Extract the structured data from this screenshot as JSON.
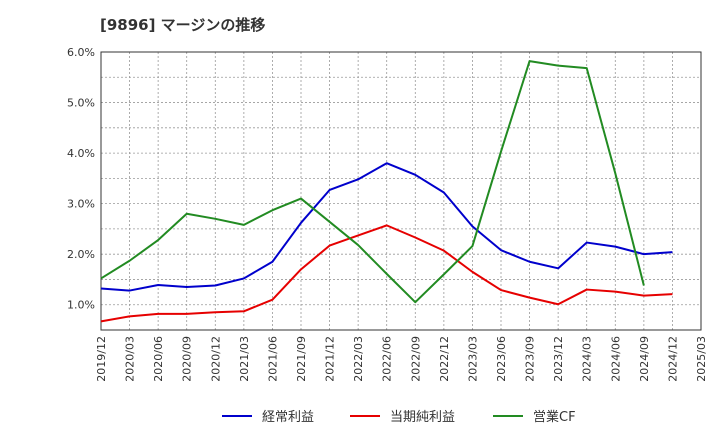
{
  "chart_data": {
    "type": "line",
    "title": "[9896]  マージンの推移",
    "xlabel": "",
    "ylabel": "",
    "ylim": [
      0.5,
      6.0
    ],
    "y_ticks": [
      "1.0%",
      "2.0%",
      "3.0%",
      "4.0%",
      "5.0%",
      "6.0%"
    ],
    "y_tick_values": [
      1.0,
      2.0,
      3.0,
      4.0,
      5.0,
      6.0
    ],
    "categories": [
      "2019/12",
      "2020/03",
      "2020/06",
      "2020/09",
      "2020/12",
      "2021/03",
      "2021/06",
      "2021/09",
      "2021/12",
      "2022/03",
      "2022/06",
      "2022/09",
      "2022/12",
      "2023/03",
      "2023/06",
      "2023/09",
      "2023/12",
      "2024/03",
      "2024/06",
      "2024/09",
      "2024/12",
      "2025/03"
    ],
    "grid": true,
    "legend_position": "bottom",
    "series": [
      {
        "name": "経常利益",
        "color": "#0000cc",
        "values": [
          1.32,
          1.28,
          1.39,
          1.35,
          1.38,
          1.52,
          1.85,
          2.62,
          3.27,
          3.48,
          3.8,
          3.57,
          3.22,
          2.55,
          2.08,
          1.85,
          1.72,
          2.23,
          2.15,
          2.0,
          2.04,
          null
        ]
      },
      {
        "name": "当期純利益",
        "color": "#e60000",
        "values": [
          0.67,
          0.77,
          0.82,
          0.82,
          0.85,
          0.87,
          1.1,
          1.7,
          2.17,
          2.37,
          2.57,
          2.33,
          2.07,
          1.65,
          1.29,
          1.14,
          1.01,
          1.3,
          1.26,
          1.18,
          1.21,
          null
        ]
      },
      {
        "name": "営業CF",
        "color": "#228b22",
        "values": [
          1.52,
          1.87,
          2.28,
          2.8,
          2.7,
          2.58,
          2.87,
          3.1,
          2.64,
          2.18,
          1.61,
          1.05,
          1.6,
          2.16,
          4.03,
          5.82,
          5.73,
          5.68,
          3.6,
          1.38,
          null,
          null
        ]
      }
    ]
  }
}
